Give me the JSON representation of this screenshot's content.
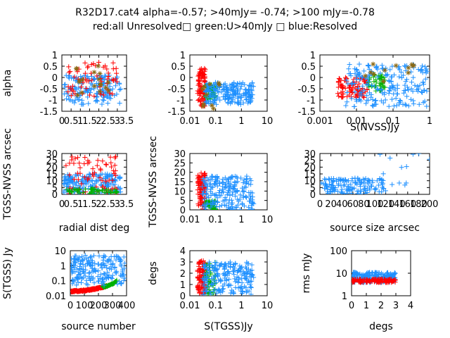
{
  "header": {
    "line1": "R32D17.cat4 alpha=-0.57; >40mJy= -0.74; >100 mJy=-0.78",
    "line2": "red:all Unresolved□ green:U>40mJy □ blue:Resolved"
  },
  "colors": {
    "red": "#ff0000",
    "green": "#00b000",
    "blue": "#1e90ff",
    "olive": "#8b6914"
  },
  "chart_data": [
    {
      "type": "scatter",
      "id": "p1",
      "xlabel": "",
      "ylabel": "alpha",
      "xlim": [
        0,
        3.5
      ],
      "ylim": [
        -1.5,
        1
      ],
      "xticks": [
        "0",
        "0.5",
        "1",
        "1.5",
        "2",
        "2.5",
        "3",
        "3.5"
      ],
      "yticks": [
        "-1.5",
        "-1",
        "-0.5",
        "0",
        "0.5",
        "1"
      ],
      "series": [
        {
          "color": "blue",
          "cluster": {
            "x": [
              0.1,
              3.2
            ],
            "y": [
              -1.2,
              0.1
            ],
            "n": 160
          }
        },
        {
          "color": "red",
          "cluster": {
            "x": [
              0.3,
              3.0
            ],
            "y": [
              -0.9,
              0.7
            ],
            "n": 60
          }
        },
        {
          "color": "olive",
          "cluster": {
            "x": [
              0.5,
              2.6
            ],
            "y": [
              -0.8,
              0.6
            ],
            "n": 18
          }
        }
      ]
    },
    {
      "type": "scatter",
      "id": "p2",
      "xlabel": "",
      "ylabel": "",
      "xscale": "log",
      "xlim": [
        0.01,
        10
      ],
      "ylim": [
        -1.5,
        1
      ],
      "xticks": [
        "0.01",
        "0.1",
        "1",
        "10"
      ],
      "yticks": [
        "-1.5",
        "-1",
        "-0.5",
        "0",
        "0.5",
        "1"
      ],
      "series": [
        {
          "color": "red",
          "cluster": {
            "x": [
              0.02,
              0.04
            ],
            "y": [
              -1.3,
              0.4
            ],
            "n": 90
          }
        },
        {
          "color": "green",
          "cluster": {
            "x": [
              0.04,
              0.1
            ],
            "y": [
              -1.0,
              -0.3
            ],
            "n": 45
          }
        },
        {
          "color": "blue",
          "cluster": {
            "x": [
              0.04,
              3.0
            ],
            "y": [
              -1.2,
              -0.2
            ],
            "n": 200
          }
        },
        {
          "color": "olive",
          "cluster": {
            "x": [
              0.03,
              0.15
            ],
            "y": [
              -1.4,
              0.0
            ],
            "n": 10
          }
        }
      ]
    },
    {
      "type": "scatter",
      "id": "p3",
      "xlabel": "S(NVSS)Jy",
      "ylabel": "",
      "xscale": "log",
      "xlim": [
        0.001,
        1
      ],
      "ylim": [
        -1.5,
        1
      ],
      "xticks": [
        "0.001",
        "0.01",
        "0.1",
        "1"
      ],
      "yticks": [
        "-1.5",
        "-1",
        "-0.5",
        "0",
        "0.5",
        "1"
      ],
      "series": [
        {
          "color": "red",
          "cluster": {
            "x": [
              0.003,
              0.02
            ],
            "y": [
              -0.9,
              0.0
            ],
            "n": 90
          }
        },
        {
          "color": "green",
          "cluster": {
            "x": [
              0.02,
              0.06
            ],
            "y": [
              -0.6,
              0.2
            ],
            "n": 45
          }
        },
        {
          "color": "blue",
          "cluster": {
            "x": [
              0.005,
              0.9
            ],
            "y": [
              -1.3,
              0.6
            ],
            "n": 200
          }
        },
        {
          "color": "olive",
          "cluster": {
            "x": [
              0.01,
              0.5
            ],
            "y": [
              -0.3,
              0.7
            ],
            "n": 12
          }
        }
      ]
    },
    {
      "type": "scatter",
      "id": "p4",
      "xlabel": "radial dist deg",
      "ylabel": "TGSS-NVSS arcsec",
      "xlim": [
        0,
        3.5
      ],
      "ylim": [
        0,
        30
      ],
      "xticks": [
        "0",
        "0.5",
        "1",
        "1.5",
        "2",
        "2.5",
        "3",
        "3.5"
      ],
      "yticks": [
        "0",
        "5",
        "10",
        "15",
        "20",
        "25",
        "30"
      ],
      "series": [
        {
          "color": "blue",
          "cluster": {
            "x": [
              0.1,
              3.2
            ],
            "y": [
              0,
              15
            ],
            "n": 180
          }
        },
        {
          "color": "red",
          "cluster": {
            "x": [
              0.2,
              3.0
            ],
            "y": [
              0,
              28
            ],
            "n": 70
          }
        },
        {
          "color": "green",
          "cluster": {
            "x": [
              0.2,
              3.0
            ],
            "y": [
              0,
              4
            ],
            "n": 50
          }
        }
      ]
    },
    {
      "type": "scatter",
      "id": "p5",
      "xlabel": "",
      "ylabel": "TGSS-NVSS arcsec",
      "xscale": "log",
      "xlim": [
        0.01,
        10
      ],
      "ylim": [
        0,
        30
      ],
      "xticks": [
        "0.01",
        "0.1",
        "1",
        "10"
      ],
      "yticks": [
        "0",
        "5",
        "10",
        "15",
        "20",
        "25",
        "30"
      ],
      "series": [
        {
          "color": "red",
          "cluster": {
            "x": [
              0.02,
              0.04
            ],
            "y": [
              0,
              20
            ],
            "n": 90
          }
        },
        {
          "color": "green",
          "cluster": {
            "x": [
              0.04,
              0.1
            ],
            "y": [
              0,
              5
            ],
            "n": 45
          }
        },
        {
          "color": "blue",
          "cluster": {
            "x": [
              0.03,
              3.0
            ],
            "y": [
              0,
              18
            ],
            "n": 200
          }
        }
      ]
    },
    {
      "type": "scatter",
      "id": "p6",
      "xlabel": "source size arcsec",
      "ylabel": "",
      "xlim": [
        0,
        200
      ],
      "ylim": [
        0,
        30
      ],
      "xticks": [
        "0",
        "20",
        "40",
        "60",
        "80",
        "100",
        "120",
        "140",
        "160",
        "180",
        "200"
      ],
      "yticks": [
        "0",
        "5",
        "10",
        "15",
        "20",
        "25",
        "30"
      ],
      "series": [
        {
          "color": "blue",
          "cluster": {
            "x": [
              2,
              120
            ],
            "y": [
              0,
              12
            ],
            "n": 140
          }
        },
        {
          "color": "blue",
          "cluster": {
            "x": [
              100,
              200
            ],
            "y": [
              5,
              30
            ],
            "n": 12
          }
        }
      ]
    },
    {
      "type": "scatter",
      "id": "p7",
      "xlabel": "source number",
      "ylabel": "S(TGSS) Jy",
      "yscale": "log",
      "xlim": [
        0,
        400
      ],
      "ylim": [
        0.01,
        10
      ],
      "xticks": [
        "0",
        "100",
        "200",
        "300",
        "400"
      ],
      "yticks": [
        "0.01",
        "0.1",
        "1",
        "10"
      ],
      "series": [
        {
          "color": "red",
          "trend": {
            "x": [
              5,
              260
            ],
            "y": [
              0.02,
              0.045
            ],
            "n": 170
          }
        },
        {
          "color": "green",
          "trend": {
            "x": [
              230,
              330
            ],
            "y": [
              0.04,
              0.1
            ],
            "n": 40
          }
        },
        {
          "color": "blue",
          "cluster": {
            "x": [
              5,
              390
            ],
            "y": [
              0.05,
              5.0
            ],
            "n": 200
          }
        }
      ]
    },
    {
      "type": "scatter",
      "id": "p8",
      "xlabel": "S(TGSS)Jy",
      "ylabel": "degs",
      "xscale": "log",
      "xlim": [
        0.01,
        10
      ],
      "ylim": [
        0,
        4
      ],
      "xticks": [
        "0.01",
        "0.1",
        "1",
        "10"
      ],
      "yticks": [
        "0",
        "1",
        "2",
        "3",
        "4"
      ],
      "series": [
        {
          "color": "red",
          "cluster": {
            "x": [
              0.02,
              0.04
            ],
            "y": [
              0.1,
              3.1
            ],
            "n": 100
          }
        },
        {
          "color": "green",
          "cluster": {
            "x": [
              0.04,
              0.1
            ],
            "y": [
              0.1,
              3.0
            ],
            "n": 45
          }
        },
        {
          "color": "blue",
          "cluster": {
            "x": [
              0.03,
              3.0
            ],
            "y": [
              0.1,
              3.0
            ],
            "n": 200
          }
        }
      ]
    },
    {
      "type": "scatter",
      "id": "p9",
      "xlabel": "degs",
      "ylabel": "rms mJy",
      "yscale": "log",
      "xlim": [
        0,
        4
      ],
      "ylim": [
        1,
        100
      ],
      "xticks": [
        "0",
        "1",
        "2",
        "3",
        "4"
      ],
      "yticks": [
        "1",
        "10",
        "100"
      ],
      "series": [
        {
          "color": "blue",
          "cluster": {
            "x": [
              0.05,
              3.0
            ],
            "y": [
              3.8,
              11.0
            ],
            "n": 180
          }
        },
        {
          "color": "red",
          "cluster": {
            "x": [
              0.05,
              3.0
            ],
            "y": [
              3.8,
              5.5
            ],
            "n": 120
          }
        }
      ]
    }
  ]
}
